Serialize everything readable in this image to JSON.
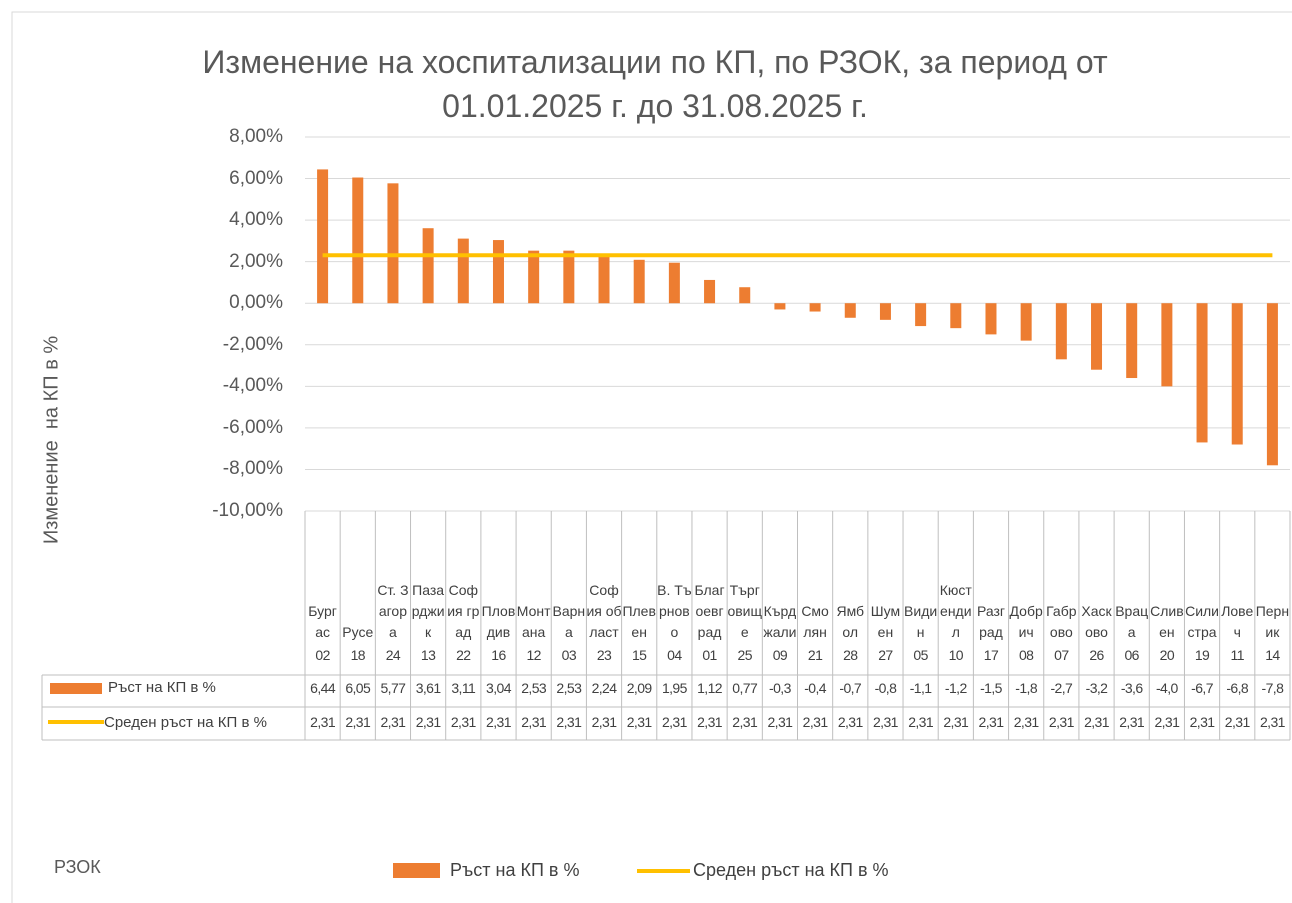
{
  "chart_data": {
    "type": "bar",
    "title": "Изменение на хоспитализации по КП, по РЗОК, за период от 01.01.2025 г. до 31.08.2025 г.",
    "y_label": "Изменение  на КП в %",
    "x_label": "РЗОК",
    "categories": [
      "Бургас",
      "Русе",
      "Ст. Загора",
      "Пазарджик",
      "София град",
      "Пловдив",
      "Монтана",
      "Варна",
      "София област",
      "Плевен",
      "В. Търново",
      "Благоевград",
      "Търговище",
      "Кърджали",
      "Смолян",
      "Ямбол",
      "Шумен",
      "Видин",
      "Кюстендил",
      "Разград",
      "Добрич",
      "Габрово",
      "Хасково",
      "Враца",
      "Сливен",
      "Силистра",
      "Ловеч",
      "Перник"
    ],
    "codes": [
      "02",
      "18",
      "24",
      "13",
      "22",
      "16",
      "12",
      "03",
      "23",
      "15",
      "04",
      "01",
      "25",
      "09",
      "21",
      "28",
      "27",
      "05",
      "10",
      "17",
      "08",
      "07",
      "26",
      "06",
      "20",
      "19",
      "11",
      "14"
    ],
    "series": [
      {
        "name": "Ръст на КП в %",
        "type": "bar",
        "color": "#ed7d31",
        "values": [
          6.44,
          6.05,
          5.77,
          3.61,
          3.11,
          3.04,
          2.53,
          2.53,
          2.24,
          2.09,
          1.95,
          1.12,
          0.77,
          -0.3,
          -0.4,
          -0.7,
          -0.8,
          -1.1,
          -1.2,
          -1.5,
          -1.8,
          -2.7,
          -3.2,
          -3.6,
          -4.0,
          -6.7,
          -6.8,
          -7.8
        ],
        "value_labels": [
          "6,44",
          "6,05",
          "5,77",
          "3,61",
          "3,11",
          "3,04",
          "2,53",
          "2,53",
          "2,24",
          "2,09",
          "1,95",
          "1,12",
          "0,77",
          "-0,3",
          "-0,4",
          "-0,7",
          "-0,8",
          "-1,1",
          "-1,2",
          "-1,5",
          "-1,8",
          "-2,7",
          "-3,2",
          "-3,6",
          "-4,0",
          "-6,7",
          "-6,8",
          "-7,8"
        ]
      },
      {
        "name": "Среден ръст на КП в %",
        "type": "line",
        "color": "#ffc000",
        "values": [
          2.31,
          2.31,
          2.31,
          2.31,
          2.31,
          2.31,
          2.31,
          2.31,
          2.31,
          2.31,
          2.31,
          2.31,
          2.31,
          2.31,
          2.31,
          2.31,
          2.31,
          2.31,
          2.31,
          2.31,
          2.31,
          2.31,
          2.31,
          2.31,
          2.31,
          2.31,
          2.31,
          2.31
        ],
        "value_labels": [
          "2,31",
          "2,31",
          "2,31",
          "2,31",
          "2,31",
          "2,31",
          "2,31",
          "2,31",
          "2,31",
          "2,31",
          "2,31",
          "2,31",
          "2,31",
          "2,31",
          "2,31",
          "2,31",
          "2,31",
          "2,31",
          "2,31",
          "2,31",
          "2,31",
          "2,31",
          "2,31",
          "2,31",
          "2,31",
          "2,31",
          "2,31",
          "2,31"
        ]
      }
    ],
    "ylim": [
      -10,
      8
    ],
    "yticks": [
      {
        "value": -10,
        "label": "-10,00%"
      },
      {
        "value": -8,
        "label": "-8,00%"
      },
      {
        "value": -6,
        "label": "-6,00%"
      },
      {
        "value": -4,
        "label": "-4,00%"
      },
      {
        "value": -2,
        "label": "-2,00%"
      },
      {
        "value": 0,
        "label": "0,00%"
      },
      {
        "value": 2,
        "label": "2,00%"
      },
      {
        "value": 4,
        "label": "4,00%"
      },
      {
        "value": 6,
        "label": "6,00%"
      },
      {
        "value": 8,
        "label": "8,00%"
      }
    ],
    "grid": true,
    "legend": "bottom"
  }
}
